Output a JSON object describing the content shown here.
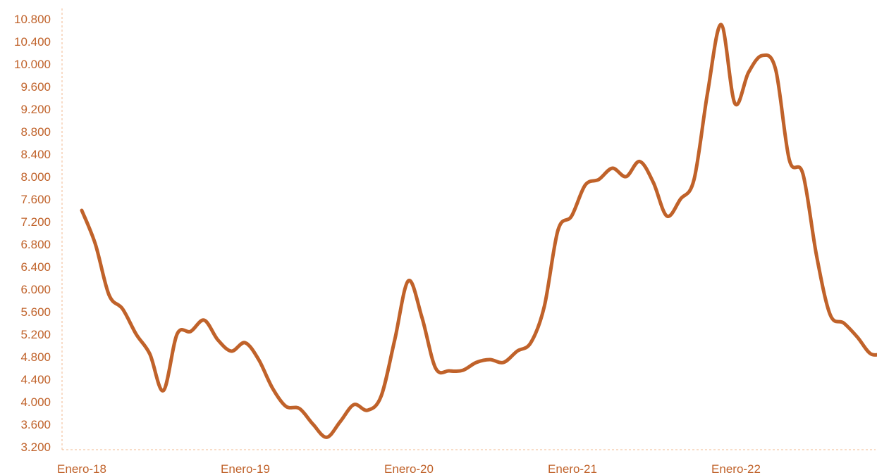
{
  "colors": {
    "line": "#c0622a",
    "tick_text": "#c0622a",
    "axis": "#f2b98f"
  },
  "chart_data": {
    "type": "line",
    "title": "",
    "xlabel": "",
    "ylabel": "",
    "ylim": [
      3200,
      10800
    ],
    "y_ticks": [
      "3.200",
      "3.600",
      "4.000",
      "4.400",
      "4.800",
      "5.200",
      "5.600",
      "6.000",
      "6.400",
      "6.800",
      "7.200",
      "7.600",
      "8.000",
      "8.400",
      "8.800",
      "9.200",
      "9.600",
      "10.000",
      "10.400",
      "10.800"
    ],
    "x_tick_labels": [
      "Enero-18",
      "Enero-19",
      "Enero-20",
      "Enero-21",
      "Enero-22"
    ],
    "grid": false,
    "series": [
      {
        "name": "",
        "values": [
          7400,
          6800,
          5900,
          5650,
          5200,
          4850,
          4200,
          5200,
          5250,
          5450,
          5100,
          4900,
          5050,
          4750,
          4250,
          3920,
          3880,
          3600,
          3370,
          3650,
          3950,
          3850,
          4100,
          5100,
          6150,
          5500,
          4600,
          4550,
          4560,
          4700,
          4750,
          4700,
          4900,
          5050,
          5700,
          7050,
          7300,
          7850,
          7950,
          8150,
          8000,
          8270,
          7900,
          7300,
          7600,
          7950,
          9500,
          10700,
          9300,
          9850,
          10150,
          9900,
          8300,
          8050,
          6600,
          5550,
          5400,
          5150,
          4850,
          4870
        ]
      }
    ]
  }
}
